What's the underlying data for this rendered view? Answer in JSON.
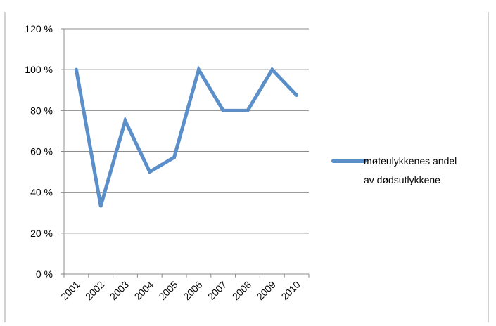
{
  "chart_data": {
    "type": "line",
    "title": "",
    "xlabel": "",
    "ylabel": "",
    "categories": [
      "2001",
      "2002",
      "2003",
      "2004",
      "2005",
      "2006",
      "2007",
      "2008",
      "2009",
      "2010"
    ],
    "series": [
      {
        "name": "møteulykkenes andel av dødsutlykkene",
        "values": [
          100,
          33.3,
          75,
          50,
          57.1,
          100,
          80,
          80,
          100,
          87.5
        ],
        "color": "#5b8fc9"
      }
    ],
    "ylim": [
      0,
      120
    ],
    "y_ticks": [
      0,
      20,
      40,
      60,
      80,
      100,
      120
    ],
    "y_tick_labels": [
      "0 %",
      "20 %",
      "40 %",
      "60 %",
      "80 %",
      "100 %",
      "120 %"
    ],
    "grid": true,
    "legend_position": "right",
    "gridline_color": "#8c8c8c"
  }
}
